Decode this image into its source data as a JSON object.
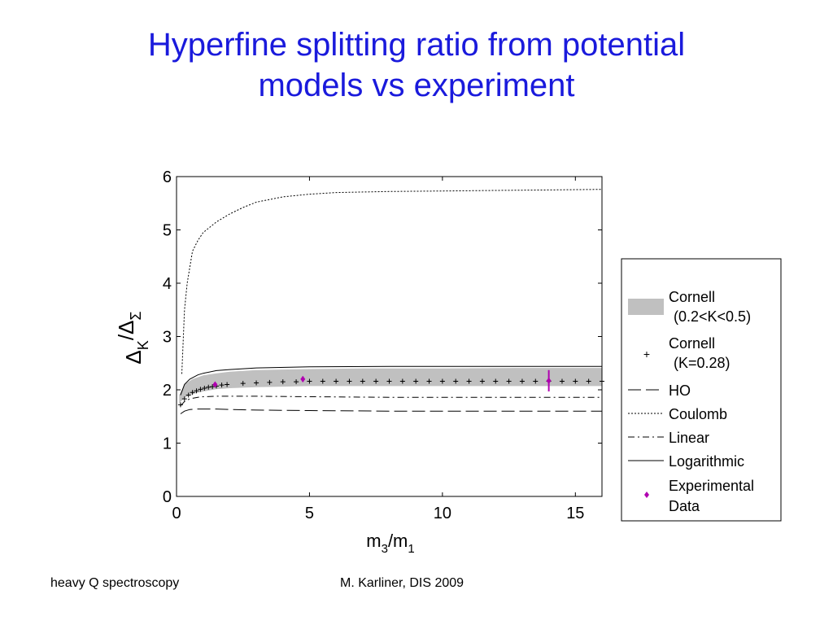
{
  "slide": {
    "title_line1": "Hyperfine splitting ratio from potential",
    "title_line2": "models vs experiment",
    "footer_left": "heavy Q spectroscopy",
    "footer_center": "M. Karliner, DIS 2009"
  },
  "colors": {
    "title": "#1a1adc",
    "band": "#c0c0c0",
    "experimental": "#b000b0"
  },
  "chart_data": {
    "type": "line",
    "title": "",
    "xlabel": "m3/m1",
    "xlabel_main": "m",
    "xlabel_sub1": "3",
    "xlabel_slash": "/m",
    "xlabel_sub2": "1",
    "ylabel": "ΔK/ΔΣ",
    "ylabel_delta1": "Δ",
    "ylabel_sub1": "K",
    "ylabel_slash": "/Δ",
    "ylabel_sub2": "Σ",
    "xlim": [
      0,
      16
    ],
    "ylim": [
      0,
      6
    ],
    "xticks": [
      "0",
      "5",
      "10",
      "15"
    ],
    "yticks": [
      "0",
      "1",
      "2",
      "3",
      "4",
      "5",
      "6"
    ],
    "grid": false,
    "legend_position": "outside-right",
    "legend": [
      {
        "key": "cornell_band",
        "line1": "Cornell",
        "line2": "(0.2<K<0.5)"
      },
      {
        "key": "cornell_point",
        "line1": "Cornell",
        "line2": "(K=0.28)"
      },
      {
        "key": "ho",
        "line1": "HO"
      },
      {
        "key": "coulomb",
        "line1": "Coulomb"
      },
      {
        "key": "linear",
        "line1": "Linear"
      },
      {
        "key": "logarithmic",
        "line1": "Logarithmic"
      },
      {
        "key": "experimental",
        "line1": "Experimental",
        "line2": "Data"
      }
    ],
    "band": {
      "name": "Cornell (0.2<K<0.5)",
      "x": [
        0.1,
        0.3,
        0.6,
        1.0,
        1.5,
        2.0,
        3.0,
        4.0,
        5.0,
        7.0,
        10.0,
        13.0,
        16.0
      ],
      "lower": [
        1.75,
        1.85,
        1.92,
        1.97,
        2.01,
        2.03,
        2.05,
        2.06,
        2.07,
        2.07,
        2.07,
        2.07,
        2.07
      ],
      "upper": [
        1.9,
        2.1,
        2.2,
        2.27,
        2.31,
        2.34,
        2.37,
        2.38,
        2.39,
        2.4,
        2.4,
        2.41,
        2.41
      ]
    },
    "series": [
      {
        "name": "Coulomb",
        "style": "dotted",
        "x": [
          0.2,
          0.3,
          0.4,
          0.6,
          0.8,
          1.0,
          1.5,
          2.0,
          2.5,
          3.0,
          4.0,
          5.0,
          6.0,
          8.0,
          10.0,
          12.0,
          14.0,
          16.0
        ],
        "values": [
          2.3,
          3.5,
          4.0,
          4.6,
          4.8,
          4.95,
          5.15,
          5.3,
          5.42,
          5.52,
          5.62,
          5.67,
          5.7,
          5.72,
          5.73,
          5.74,
          5.75,
          5.76
        ]
      },
      {
        "name": "Logarithmic",
        "style": "solid",
        "x": [
          0.15,
          0.3,
          0.5,
          0.8,
          1.0,
          1.5,
          2.0,
          3.0,
          5.0,
          8.0,
          16.0
        ],
        "values": [
          1.9,
          2.1,
          2.2,
          2.28,
          2.31,
          2.36,
          2.38,
          2.41,
          2.43,
          2.44,
          2.44
        ]
      },
      {
        "name": "Linear",
        "style": "dashdot",
        "x": [
          0.15,
          0.3,
          0.5,
          0.8,
          1.0,
          1.5,
          2.0,
          3.0,
          5.0,
          8.0,
          16.0
        ],
        "values": [
          1.7,
          1.78,
          1.83,
          1.86,
          1.87,
          1.88,
          1.88,
          1.88,
          1.87,
          1.86,
          1.86
        ]
      },
      {
        "name": "HO",
        "style": "dashed",
        "x": [
          0.15,
          0.3,
          0.5,
          0.8,
          1.0,
          1.5,
          2.0,
          3.0,
          5.0,
          8.0,
          16.0
        ],
        "values": [
          1.55,
          1.6,
          1.63,
          1.64,
          1.64,
          1.64,
          1.63,
          1.62,
          1.61,
          1.6,
          1.6
        ]
      }
    ],
    "cornell_points": {
      "name": "Cornell (K=0.28)",
      "x": [
        0.15,
        0.3,
        0.45,
        0.6,
        0.75,
        0.9,
        1.05,
        1.2,
        1.35,
        1.5,
        1.7,
        1.9,
        2.5,
        3.0,
        3.5,
        4.0,
        4.5,
        5.0,
        5.5,
        6.0,
        6.5,
        7.0,
        7.5,
        8.0,
        8.5,
        9.0,
        9.5,
        10.0,
        10.5,
        11.0,
        11.5,
        12.0,
        12.5,
        13.0,
        13.5,
        14.0,
        14.5,
        15.0,
        15.5,
        16.0
      ],
      "values": [
        1.72,
        1.83,
        1.9,
        1.95,
        1.98,
        2.01,
        2.03,
        2.05,
        2.06,
        2.07,
        2.09,
        2.1,
        2.12,
        2.13,
        2.14,
        2.15,
        2.15,
        2.16,
        2.16,
        2.16,
        2.16,
        2.16,
        2.16,
        2.16,
        2.16,
        2.16,
        2.16,
        2.16,
        2.16,
        2.16,
        2.16,
        2.16,
        2.16,
        2.16,
        2.16,
        2.16,
        2.16,
        2.16,
        2.16,
        2.16
      ]
    },
    "experimental": {
      "name": "Experimental Data",
      "x": [
        1.45,
        4.75,
        14.0
      ],
      "values": [
        2.1,
        2.2,
        2.17
      ],
      "errors": [
        0.02,
        0.05,
        0.2
      ]
    }
  }
}
